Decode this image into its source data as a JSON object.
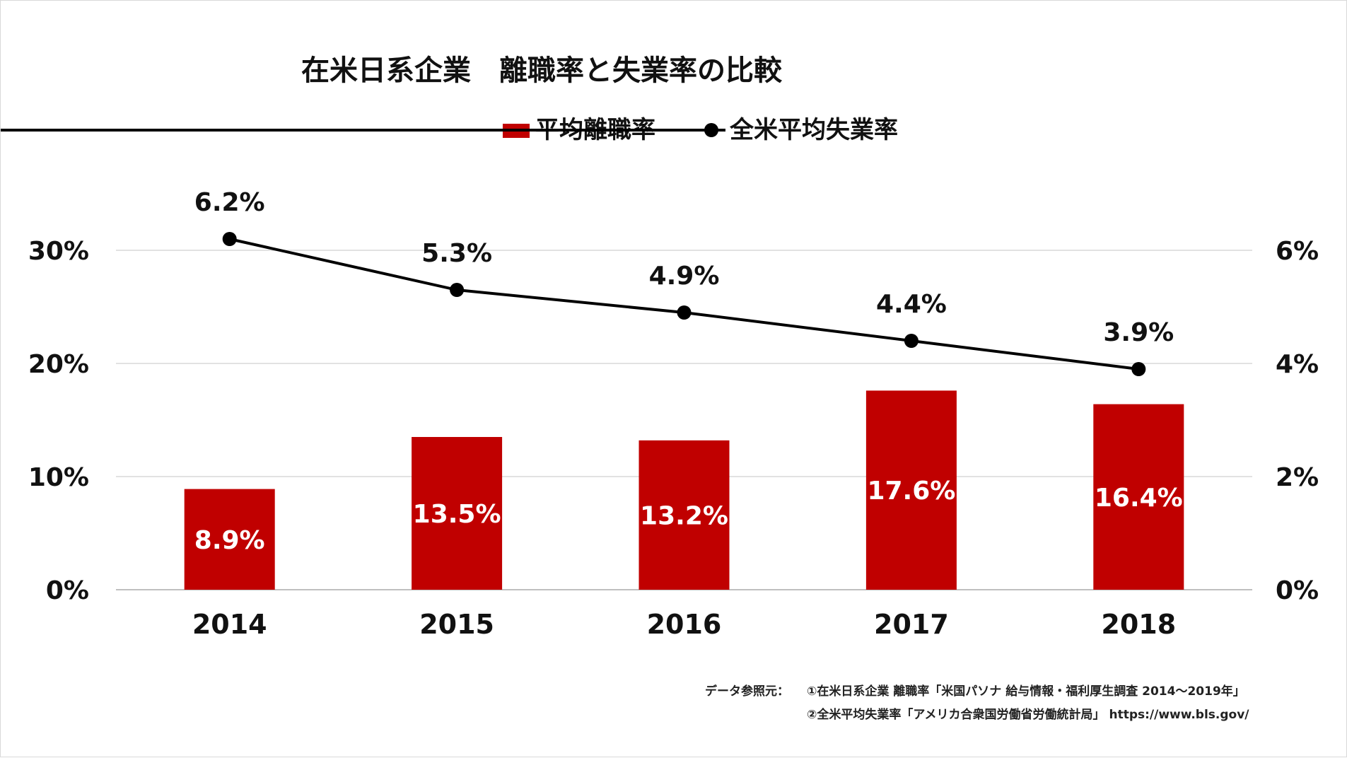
{
  "chart_data": {
    "type": "bar",
    "title": "在米日系企業　離職率と失業率の比較",
    "categories": [
      "2014",
      "2015",
      "2016",
      "2017",
      "2018"
    ],
    "series": [
      {
        "name": "平均離職率",
        "type": "bar",
        "axis": "left",
        "color": "#c00000",
        "values": [
          8.9,
          13.5,
          13.2,
          17.6,
          16.4
        ],
        "labels": [
          "8.9%",
          "13.5%",
          "13.2%",
          "17.6%",
          "16.4%"
        ]
      },
      {
        "name": "全米平均失業率",
        "type": "line",
        "axis": "right",
        "color": "#000000",
        "values": [
          6.2,
          5.3,
          4.9,
          4.4,
          3.9
        ],
        "labels": [
          "6.2%",
          "5.3%",
          "4.9%",
          "4.4%",
          "3.9%"
        ]
      }
    ],
    "y_left": {
      "range": [
        0,
        30
      ],
      "ticks": [
        "0%",
        "10%",
        "20%",
        "30%"
      ]
    },
    "y_right": {
      "range": [
        0,
        6
      ],
      "ticks": [
        "0%",
        "2%",
        "4%",
        "6%"
      ]
    },
    "grid": true,
    "legend_position": "top-center"
  },
  "source": {
    "prefix": "データ参照元：",
    "line1": "①在米日系企業 離職率「米国パソナ 給与情報・福利厚生調査 2014～2019年」",
    "line2": "②全米平均失業率「アメリカ合衆国労働省労働統計局」 https://www.bls.gov/"
  }
}
